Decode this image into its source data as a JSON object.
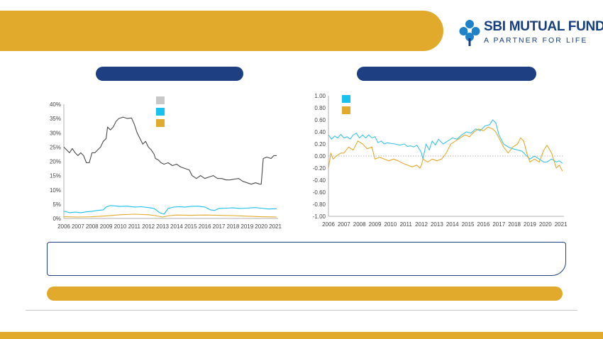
{
  "brand": {
    "name": "SBI MUTUAL FUND",
    "tagline": "A PARTNER FOR LIFE",
    "colors": {
      "gold": "#e2aa2c",
      "navy": "#1e3f82",
      "logo_blue": "#163f7f"
    }
  },
  "chart_data": [
    {
      "type": "line",
      "legend": "top-center",
      "legend_swatches": [
        "#c8c8c8",
        "#18c1ee",
        "#e2aa2c"
      ],
      "ylim": [
        0,
        40
      ],
      "y_tick_labels": [
        "0%",
        "5%",
        "10%",
        "15%",
        "20%",
        "25%",
        "30%",
        "35%",
        "40%"
      ],
      "x_tick_labels": [
        "2006",
        "2007",
        "2008",
        "2009",
        "2010",
        "2011",
        "2012",
        "2013",
        "2014",
        "2015",
        "2016",
        "2017",
        "2018",
        "2019",
        "2020",
        "2021"
      ],
      "xlim": [
        2006,
        2021.2
      ],
      "grid": false,
      "series": [
        {
          "color": "#4a4a4a",
          "points": [
            [
              2006.0,
              25
            ],
            [
              2006.2,
              24
            ],
            [
              2006.4,
              23
            ],
            [
              2006.6,
              24.5
            ],
            [
              2006.8,
              23
            ],
            [
              2007.0,
              22
            ],
            [
              2007.2,
              23
            ],
            [
              2007.4,
              22
            ],
            [
              2007.6,
              19.5
            ],
            [
              2007.8,
              19.5
            ],
            [
              2008.0,
              23
            ],
            [
              2008.2,
              23
            ],
            [
              2008.4,
              24
            ],
            [
              2008.6,
              25
            ],
            [
              2008.8,
              27
            ],
            [
              2009.0,
              28
            ],
            [
              2009.1,
              32
            ],
            [
              2009.3,
              31
            ],
            [
              2009.5,
              32
            ],
            [
              2009.7,
              34
            ],
            [
              2009.9,
              35
            ],
            [
              2010.2,
              35.5
            ],
            [
              2010.5,
              35
            ],
            [
              2010.8,
              35.2
            ],
            [
              2011.0,
              33
            ],
            [
              2011.2,
              30
            ],
            [
              2011.4,
              28
            ],
            [
              2011.6,
              26
            ],
            [
              2011.8,
              27
            ],
            [
              2012.0,
              25
            ],
            [
              2012.2,
              24
            ],
            [
              2012.4,
              22.5
            ],
            [
              2012.5,
              21
            ],
            [
              2012.7,
              20.5
            ],
            [
              2012.9,
              19.5
            ],
            [
              2013.1,
              19
            ],
            [
              2013.4,
              19.5
            ],
            [
              2013.7,
              18.5
            ],
            [
              2014.0,
              19
            ],
            [
              2014.3,
              18
            ],
            [
              2014.6,
              17.5
            ],
            [
              2014.9,
              17
            ],
            [
              2015.1,
              15
            ],
            [
              2015.4,
              14
            ],
            [
              2015.7,
              15
            ],
            [
              2016.0,
              14
            ],
            [
              2016.3,
              14.5
            ],
            [
              2016.6,
              15
            ],
            [
              2016.9,
              14
            ],
            [
              2017.2,
              14
            ],
            [
              2017.5,
              13.5
            ],
            [
              2017.8,
              13.5
            ],
            [
              2018.1,
              13.8
            ],
            [
              2018.4,
              14
            ],
            [
              2018.7,
              13
            ],
            [
              2019.0,
              12.5
            ],
            [
              2019.3,
              12
            ],
            [
              2019.6,
              12.5
            ],
            [
              2019.9,
              12
            ],
            [
              2020.0,
              12
            ],
            [
              2020.15,
              21
            ],
            [
              2020.4,
              21.5
            ],
            [
              2020.7,
              21
            ],
            [
              2020.9,
              22
            ],
            [
              2021.1,
              22
            ]
          ]
        },
        {
          "color": "#18c1ee",
          "points": [
            [
              2006.0,
              2.5
            ],
            [
              2006.4,
              2
            ],
            [
              2006.8,
              2.2
            ],
            [
              2007.2,
              2
            ],
            [
              2007.6,
              2.3
            ],
            [
              2008.0,
              2.5
            ],
            [
              2008.4,
              2.8
            ],
            [
              2008.8,
              3
            ],
            [
              2009.0,
              4
            ],
            [
              2009.3,
              4.5
            ],
            [
              2009.6,
              4.4
            ],
            [
              2010.0,
              4.2
            ],
            [
              2010.5,
              4.3
            ],
            [
              2011.0,
              4
            ],
            [
              2011.5,
              4.1
            ],
            [
              2012.0,
              3.8
            ],
            [
              2012.4,
              3.5
            ],
            [
              2012.8,
              2
            ],
            [
              2013.1,
              1.5
            ],
            [
              2013.4,
              3.5
            ],
            [
              2013.8,
              4
            ],
            [
              2014.2,
              4.1
            ],
            [
              2014.6,
              4
            ],
            [
              2015.0,
              4.2
            ],
            [
              2015.5,
              4.3
            ],
            [
              2016.0,
              4
            ],
            [
              2016.4,
              3
            ],
            [
              2016.7,
              2.8
            ],
            [
              2017.0,
              3.5
            ],
            [
              2017.5,
              3.6
            ],
            [
              2018.0,
              3.7
            ],
            [
              2018.5,
              3.5
            ],
            [
              2019.0,
              3.6
            ],
            [
              2019.5,
              3.8
            ],
            [
              2020.0,
              3.6
            ],
            [
              2020.5,
              3.3
            ],
            [
              2021.1,
              3.4
            ]
          ]
        },
        {
          "color": "#e2aa2c",
          "points": [
            [
              2006.0,
              0.6
            ],
            [
              2007.0,
              0.5
            ],
            [
              2008.0,
              0.6
            ],
            [
              2009.0,
              0.9
            ],
            [
              2010.0,
              1.3
            ],
            [
              2011.0,
              1.5
            ],
            [
              2012.0,
              1.3
            ],
            [
              2012.5,
              1
            ],
            [
              2013.0,
              0.5
            ],
            [
              2013.5,
              1
            ],
            [
              2014.0,
              1.2
            ],
            [
              2015.0,
              1.1
            ],
            [
              2016.0,
              1.2
            ],
            [
              2017.0,
              1.1
            ],
            [
              2018.0,
              1
            ],
            [
              2019.0,
              0.8
            ],
            [
              2020.0,
              0.6
            ],
            [
              2021.1,
              0.5
            ]
          ]
        }
      ]
    },
    {
      "type": "line",
      "legend": "top-left",
      "legend_swatches": [
        "#18c1ee",
        "#e2aa2c"
      ],
      "ylim": [
        -1,
        1
      ],
      "y_tick_labels": [
        "1.00",
        "0.80",
        "0.60",
        "0.40",
        "0.20",
        "0.00",
        "-0.20",
        "-0.40",
        "-0.60",
        "-0.80",
        "-1.00"
      ],
      "x_tick_labels": [
        "2006",
        "2007",
        "2008",
        "2009",
        "2010",
        "2011",
        "2012",
        "2013",
        "2014",
        "2015",
        "2016",
        "2017",
        "2018",
        "2019",
        "2020",
        "2021"
      ],
      "xlim": [
        2006,
        2021.2
      ],
      "zero_line": true,
      "grid": false,
      "series": [
        {
          "color": "#3cc3e6",
          "points": [
            [
              2006.0,
              0.35
            ],
            [
              2006.2,
              0.28
            ],
            [
              2006.4,
              0.33
            ],
            [
              2006.6,
              0.3
            ],
            [
              2006.8,
              0.36
            ],
            [
              2007.0,
              0.3
            ],
            [
              2007.2,
              0.32
            ],
            [
              2007.4,
              0.28
            ],
            [
              2007.6,
              0.35
            ],
            [
              2007.8,
              0.38
            ],
            [
              2008.0,
              0.3
            ],
            [
              2008.2,
              0.35
            ],
            [
              2008.4,
              0.3
            ],
            [
              2008.6,
              0.35
            ],
            [
              2008.8,
              0.3
            ],
            [
              2009.0,
              0.32
            ],
            [
              2009.2,
              0.22
            ],
            [
              2009.4,
              0.25
            ],
            [
              2009.6,
              0.2
            ],
            [
              2009.8,
              0.22
            ],
            [
              2010.0,
              0.21
            ],
            [
              2010.3,
              0.2
            ],
            [
              2010.6,
              0.18
            ],
            [
              2010.9,
              0.2
            ],
            [
              2011.1,
              0.16
            ],
            [
              2011.3,
              0.17
            ],
            [
              2011.5,
              0.15
            ],
            [
              2011.7,
              0.18
            ],
            [
              2011.9,
              0.1
            ],
            [
              2012.0,
              0.05
            ],
            [
              2012.1,
              -0.05
            ],
            [
              2012.3,
              0.2
            ],
            [
              2012.5,
              0.1
            ],
            [
              2012.7,
              0.25
            ],
            [
              2012.9,
              0.18
            ],
            [
              2013.1,
              0.28
            ],
            [
              2013.4,
              0.2
            ],
            [
              2013.7,
              0.25
            ],
            [
              2014.0,
              0.3
            ],
            [
              2014.3,
              0.28
            ],
            [
              2014.6,
              0.35
            ],
            [
              2014.9,
              0.4
            ],
            [
              2015.2,
              0.38
            ],
            [
              2015.5,
              0.45
            ],
            [
              2015.8,
              0.42
            ],
            [
              2016.1,
              0.5
            ],
            [
              2016.4,
              0.52
            ],
            [
              2016.6,
              0.6
            ],
            [
              2016.8,
              0.55
            ],
            [
              2017.0,
              0.35
            ],
            [
              2017.3,
              0.2
            ],
            [
              2017.6,
              0.15
            ],
            [
              2017.9,
              0.12
            ],
            [
              2018.2,
              0.1
            ],
            [
              2018.5,
              0.08
            ],
            [
              2018.8,
              0.0
            ],
            [
              2019.0,
              -0.05
            ],
            [
              2019.3,
              0.0
            ],
            [
              2019.6,
              -0.05
            ],
            [
              2019.9,
              -0.1
            ],
            [
              2020.1,
              -0.1
            ],
            [
              2020.4,
              -0.05
            ],
            [
              2020.7,
              -0.1
            ],
            [
              2020.9,
              -0.08
            ],
            [
              2021.1,
              -0.12
            ]
          ]
        },
        {
          "color": "#e2aa2c",
          "points": [
            [
              2006.0,
              -0.2
            ],
            [
              2006.15,
              0.05
            ],
            [
              2006.3,
              -0.05
            ],
            [
              2006.5,
              0.0
            ],
            [
              2006.8,
              0.05
            ],
            [
              2007.0,
              0.05
            ],
            [
              2007.3,
              0.15
            ],
            [
              2007.6,
              0.1
            ],
            [
              2007.9,
              0.25
            ],
            [
              2008.2,
              0.2
            ],
            [
              2008.5,
              0.12
            ],
            [
              2008.8,
              0.15
            ],
            [
              2009.0,
              -0.05
            ],
            [
              2009.3,
              -0.02
            ],
            [
              2009.6,
              -0.05
            ],
            [
              2009.9,
              -0.08
            ],
            [
              2010.2,
              -0.05
            ],
            [
              2010.5,
              -0.08
            ],
            [
              2010.8,
              -0.12
            ],
            [
              2011.1,
              -0.15
            ],
            [
              2011.4,
              -0.18
            ],
            [
              2011.7,
              -0.15
            ],
            [
              2011.9,
              -0.2
            ],
            [
              2012.0,
              -0.15
            ],
            [
              2012.1,
              -0.05
            ],
            [
              2012.4,
              -0.1
            ],
            [
              2012.7,
              -0.05
            ],
            [
              2013.0,
              -0.08
            ],
            [
              2013.3,
              -0.05
            ],
            [
              2013.6,
              0.05
            ],
            [
              2013.9,
              0.2
            ],
            [
              2014.2,
              0.25
            ],
            [
              2014.5,
              0.3
            ],
            [
              2014.8,
              0.35
            ],
            [
              2015.1,
              0.32
            ],
            [
              2015.4,
              0.4
            ],
            [
              2015.7,
              0.45
            ],
            [
              2016.0,
              0.42
            ],
            [
              2016.3,
              0.48
            ],
            [
              2016.6,
              0.45
            ],
            [
              2016.8,
              0.4
            ],
            [
              2017.0,
              0.3
            ],
            [
              2017.3,
              0.15
            ],
            [
              2017.6,
              0.05
            ],
            [
              2017.9,
              0.15
            ],
            [
              2018.2,
              0.2
            ],
            [
              2018.4,
              0.3
            ],
            [
              2018.6,
              0.25
            ],
            [
              2018.8,
              0.05
            ],
            [
              2019.0,
              -0.1
            ],
            [
              2019.3,
              -0.05
            ],
            [
              2019.6,
              -0.1
            ],
            [
              2019.9,
              0.1
            ],
            [
              2020.1,
              0.18
            ],
            [
              2020.4,
              0.05
            ],
            [
              2020.7,
              -0.2
            ],
            [
              2020.9,
              -0.15
            ],
            [
              2021.1,
              -0.25
            ]
          ]
        }
      ]
    }
  ]
}
